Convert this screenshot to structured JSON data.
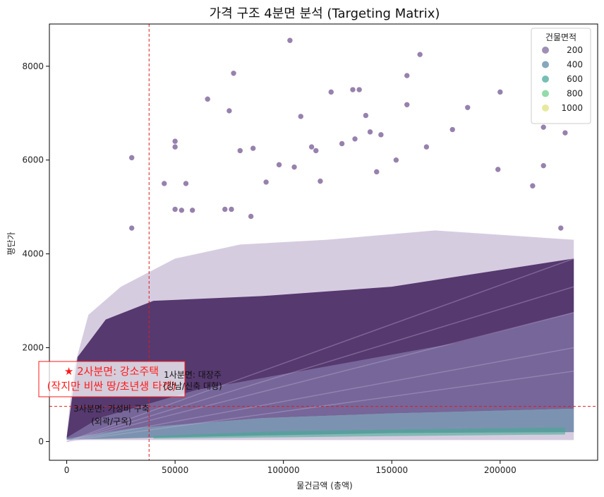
{
  "chart_data": {
    "type": "scatter",
    "title": "가격 구조 4분면 분석 (Targeting Matrix)",
    "xlabel": "물건금액 (총액)",
    "ylabel": "평단가",
    "xlim": [
      -8000,
      245000
    ],
    "ylim": [
      -400,
      8900
    ],
    "xticks": [
      0,
      50000,
      100000,
      150000,
      200000
    ],
    "yticks": [
      0,
      2000,
      4000,
      6000,
      8000
    ],
    "grid": false,
    "legend": {
      "title": "건물면적",
      "placement": "top-right",
      "entries": [
        {
          "label": "200",
          "color": "#7c6a9c"
        },
        {
          "label": "400",
          "color": "#5e8aa8"
        },
        {
          "label": "600",
          "color": "#4aa99b"
        },
        {
          "label": "800",
          "color": "#6fcf8c"
        },
        {
          "label": "1000",
          "color": "#dfe37e"
        }
      ]
    },
    "colormap": "viridis",
    "size_range": [
      0,
      1100
    ],
    "reference_lines": {
      "x": 38000,
      "y": 750,
      "color": "#e31a1c",
      "style": "dashed"
    },
    "bulk_density": "very dense overlapping points; upper envelope roughly linear from (0,2000) rising to (235000,3900); lower envelope near 0",
    "series": [
      {
        "name": "outliers",
        "points": [
          [
            103000,
            8550
          ],
          [
            163000,
            8250
          ],
          [
            77000,
            7850
          ],
          [
            157000,
            7800
          ],
          [
            135000,
            7500
          ],
          [
            200000,
            7450
          ],
          [
            132000,
            7500
          ],
          [
            122000,
            7450
          ],
          [
            65000,
            7300
          ],
          [
            157000,
            7180
          ],
          [
            185000,
            7120
          ],
          [
            75000,
            7050
          ],
          [
            138000,
            6950
          ],
          [
            108000,
            6930
          ],
          [
            220000,
            6700
          ],
          [
            178000,
            6650
          ],
          [
            230000,
            6580
          ],
          [
            140000,
            6600
          ],
          [
            145000,
            6540
          ],
          [
            133000,
            6450
          ],
          [
            50000,
            6400
          ],
          [
            50000,
            6280
          ],
          [
            166000,
            6280
          ],
          [
            113000,
            6280
          ],
          [
            30000,
            6050
          ],
          [
            80000,
            6200
          ],
          [
            86000,
            6250
          ],
          [
            127000,
            6350
          ],
          [
            115000,
            6200
          ],
          [
            152000,
            6000
          ],
          [
            98000,
            5900
          ],
          [
            105000,
            5850
          ],
          [
            220000,
            5880
          ],
          [
            199000,
            5800
          ],
          [
            143000,
            5750
          ],
          [
            45000,
            5500
          ],
          [
            55000,
            5500
          ],
          [
            92000,
            5530
          ],
          [
            117000,
            5550
          ],
          [
            215000,
            5450
          ],
          [
            50000,
            4950
          ],
          [
            53000,
            4930
          ],
          [
            58000,
            4930
          ],
          [
            73000,
            4950
          ],
          [
            76000,
            4950
          ],
          [
            85000,
            4800
          ],
          [
            30000,
            4550
          ],
          [
            228000,
            4550
          ]
        ]
      }
    ],
    "annotations": [
      {
        "text": "★ 2사분면: 강소주택",
        "box": true
      },
      {
        "text": "(작지만 비싼 땅/초년생 타겟)",
        "box": true
      },
      {
        "text": "1사분면: 대장주"
      },
      {
        "text": "(강남/신축 대형)"
      },
      {
        "text": "3사분면: 가성비 구축"
      },
      {
        "text": "(외곽/구옥)"
      }
    ]
  }
}
